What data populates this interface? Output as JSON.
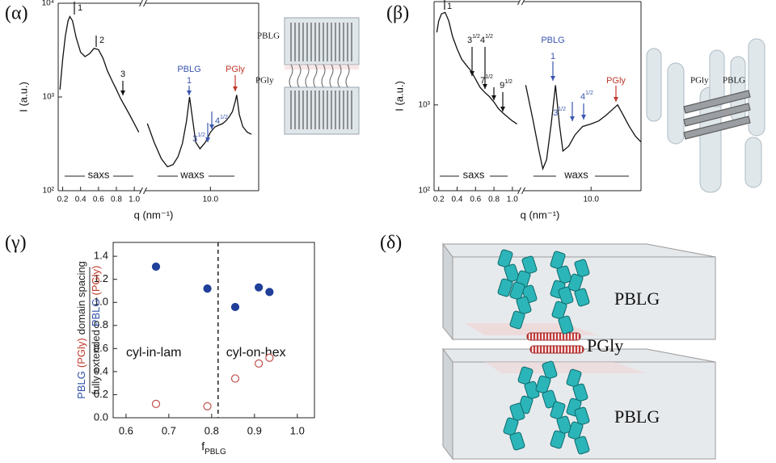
{
  "chart_data": [
    {
      "type": "line",
      "panel": "(α)",
      "xlabel": "q (nm⁻¹)",
      "ylabel": "I (a.u.)",
      "log_y": true,
      "color": "#111111",
      "ylim": [
        100,
        10000
      ],
      "yticks": [
        {
          "value": 100,
          "label": "10²"
        },
        {
          "value": 1000,
          "label": "10³"
        },
        {
          "value": 10000,
          "label": "10⁴"
        }
      ],
      "segments": [
        {
          "name": "saxs",
          "xlim": [
            0.15,
            1.08
          ],
          "xticks": [
            0.2,
            0.4,
            0.6,
            0.8,
            {
              "value": 1,
              "label": "1.0"
            }
          ],
          "x": [
            0.17,
            0.2,
            0.23,
            0.26,
            0.28,
            0.31,
            0.35,
            0.4,
            0.45,
            0.5,
            0.55,
            0.6,
            0.65,
            0.7,
            0.75,
            0.8,
            0.85,
            0.9,
            0.95,
            1.0,
            1.05
          ],
          "values": [
            1200,
            2500,
            4500,
            6500,
            7200,
            6500,
            4300,
            3000,
            2700,
            2900,
            3300,
            3200,
            2600,
            1900,
            1500,
            1200,
            950,
            780,
            640,
            520,
            420
          ]
        },
        {
          "name": "waxs",
          "log_x": true,
          "xlim": [
            2.5,
            28
          ],
          "xticks": [
            {
              "value": 10,
              "label": "10.0"
            }
          ],
          "x": [
            2.6,
            3.0,
            3.5,
            4.0,
            4.5,
            5.0,
            5.5,
            6.0,
            6.4,
            6.8,
            7.3,
            8.0,
            9.0,
            10,
            11,
            12,
            13,
            14,
            15,
            16,
            17,
            17.5,
            18.5,
            20,
            22,
            24
          ],
          "values": [
            520,
            330,
            220,
            180,
            190,
            230,
            320,
            550,
            1000,
            600,
            330,
            280,
            330,
            420,
            480,
            500,
            520,
            560,
            620,
            700,
            900,
            1050,
            650,
            480,
            420,
            400
          ]
        }
      ],
      "annotations": [
        {
          "text": "1"
        },
        {
          "text": "2"
        },
        {
          "text": "3"
        },
        {
          "text": "PBLG",
          "color": "#3a56b0"
        },
        {
          "text": "1",
          "color": "#3a56b0"
        },
        {
          "text": "3",
          "sup": "1/2",
          "color": "#3a56b0"
        },
        {
          "text": "4",
          "sup": "1/2",
          "color": "#3a56b0"
        },
        {
          "text": "PGly",
          "color": "#c0392b"
        }
      ],
      "scheme_labels": [
        "PBLG",
        "PGly"
      ]
    },
    {
      "type": "line",
      "panel": "(β)",
      "xlabel": "q (nm⁻¹)",
      "ylabel": "I (a.u.)",
      "log_y": true,
      "color": "#111111",
      "ylim": [
        100,
        16000
      ],
      "yticks": [
        {
          "value": 100,
          "label": "10²"
        },
        {
          "value": 1000,
          "label": "10³"
        }
      ],
      "segments": [
        {
          "name": "saxs",
          "xlim": [
            0.15,
            1.08
          ],
          "xticks": [
            0.2,
            0.4,
            0.6,
            0.8,
            {
              "value": 1,
              "label": "1.0"
            }
          ],
          "x": [
            0.18,
            0.2,
            0.23,
            0.27,
            0.31,
            0.35,
            0.4,
            0.45,
            0.5,
            0.55,
            0.6,
            0.65,
            0.7,
            0.75,
            0.8,
            0.85,
            0.9,
            0.95,
            1.0,
            1.05
          ],
          "values": [
            7000,
            9500,
            11500,
            12000,
            9500,
            6300,
            4500,
            3400,
            2900,
            2500,
            2000,
            1600,
            1400,
            1250,
            1080,
            900,
            800,
            720,
            650,
            600
          ]
        },
        {
          "name": "waxs",
          "log_x": true,
          "xlim": [
            2.5,
            28
          ],
          "xticks": [
            {
              "value": 10,
              "label": "10.0"
            }
          ],
          "x": [
            2.6,
            3.0,
            3.4,
            3.7,
            4.0,
            4.4,
            4.8,
            5.2,
            5.6,
            6.3,
            7.2,
            8.4,
            10,
            11.7,
            13.5,
            15.5,
            17.3,
            19,
            22,
            25,
            28
          ],
          "values": [
            1700,
            700,
            300,
            180,
            230,
            600,
            1700,
            600,
            290,
            330,
            450,
            560,
            600,
            650,
            750,
            880,
            1000,
            800,
            560,
            430,
            370
          ]
        }
      ],
      "annotations": [
        {
          "text": "1"
        },
        {
          "text": "3",
          "sup": "1/2"
        },
        {
          "text": "4",
          "sup": "1/2"
        },
        {
          "text": "7",
          "sup": "1/2"
        },
        {
          "text": "9",
          "sup": "1/2"
        },
        {
          "text": "PBLG",
          "color": "#3a56b0"
        },
        {
          "text": "1",
          "color": "#3a56b0"
        },
        {
          "text": "3",
          "sup": "1/2",
          "color": "#3a56b0"
        },
        {
          "text": "4",
          "sup": "1/2",
          "color": "#3a56b0"
        },
        {
          "text": "PGly",
          "color": "#c0392b"
        }
      ],
      "scheme_labels": [
        "PGly",
        "PBLG"
      ]
    },
    {
      "type": "scatter",
      "panel": "(γ)",
      "xlabel": "f",
      "xlabel_sub": "PBLG",
      "ylabel": {
        "numerator": [
          {
            "text": "PBLG",
            "color": "#2f4fa8"
          },
          {
            "text": "(PGly)",
            "color": "#c0392b"
          },
          {
            "text": "domain spacing",
            "color": "#222222"
          }
        ],
        "denominator": [
          {
            "text": "fully extended",
            "color": "#222222"
          },
          {
            "text": "PBLG",
            "color": "#2f4fa8"
          },
          {
            "text": "(PGly)",
            "color": "#c0392b"
          }
        ]
      },
      "xlim": [
        0.57,
        1.04
      ],
      "xticks": [
        0.6,
        0.7,
        0.8,
        0.9,
        {
          "value": 1,
          "label": "1.0"
        }
      ],
      "ylim": [
        0,
        1.52
      ],
      "yticks": [
        {
          "value": 0,
          "label": "0.0"
        },
        0.2,
        0.4,
        0.6,
        0.8,
        {
          "value": 1,
          "label": "1.0"
        },
        1.2,
        1.4
      ],
      "x": [
        0.67,
        0.79,
        0.855,
        0.91,
        0.935
      ],
      "series": [
        {
          "color": "#1f3f99",
          "filled": true,
          "values": [
            1.31,
            1.12,
            0.96,
            1.13,
            1.09
          ]
        },
        {
          "color": "#c0504d",
          "filled": false,
          "values": [
            0.12,
            0.1,
            0.34,
            0.47,
            0.52
          ]
        }
      ],
      "divider_x": 0.815,
      "regions": [
        "cyl-in-lam",
        "cyl-on-hex"
      ]
    }
  ],
  "illustration": {
    "panel": "(δ)",
    "labels": [
      "PBLG",
      "PGly",
      "PBLG"
    ]
  }
}
